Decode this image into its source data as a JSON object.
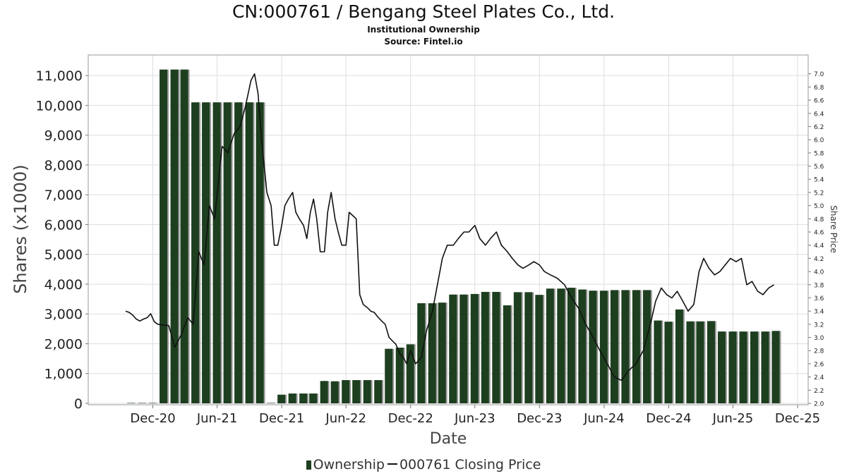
{
  "title": "CN:000761 / Bengang Steel Plates Co., Ltd.",
  "subtitle": "Institutional Ownership",
  "source": "Source: Fintel.io",
  "chart_data": {
    "type": "bar",
    "xlabel": "Date",
    "ylabel": "Shares (x1000)",
    "y2label": "Share Price",
    "x_ticks": [
      "Dec-20",
      "Jun-21",
      "Dec-21",
      "Jun-22",
      "Dec-22",
      "Jun-23",
      "Dec-23",
      "Jun-24",
      "Dec-24",
      "Jun-25",
      "Dec-25"
    ],
    "x_range": [
      "2020-06-01",
      "2025-12-31"
    ],
    "y_ticks": [
      "0",
      "1,000",
      "2,000",
      "3,000",
      "4,000",
      "5,000",
      "6,000",
      "7,000",
      "8,000",
      "9,000",
      "10,000",
      "11,000"
    ],
    "ylim": [
      0,
      11500
    ],
    "y2_ticks": [
      "2.0",
      "2.2",
      "2.4",
      "2.6",
      "2.8",
      "3.0",
      "3.2",
      "3.4",
      "3.6",
      "3.8",
      "4.0",
      "4.2",
      "4.4",
      "4.6",
      "4.8",
      "5.0",
      "5.2",
      "5.4",
      "5.6",
      "5.8",
      "6.0",
      "6.2",
      "6.4",
      "6.6",
      "6.8",
      "7.0"
    ],
    "y2lim": [
      2.0,
      7.2
    ],
    "grid": true,
    "legend_position": "bottom",
    "colors": {
      "bar": "#1d3f1f",
      "bar_shadow": "#8a8a8a",
      "line": "#111111",
      "grid": "#dddddd"
    },
    "series": [
      {
        "name": "Ownership",
        "kind": "bar",
        "x": [
          "2020-09-30",
          "2020-10-31",
          "2020-11-30",
          "2020-12-31",
          "2021-01-31",
          "2021-02-28",
          "2021-03-31",
          "2021-04-30",
          "2021-05-31",
          "2021-06-30",
          "2021-07-31",
          "2021-08-31",
          "2021-09-30",
          "2021-10-31",
          "2021-11-30",
          "2021-12-31",
          "2022-01-31",
          "2022-02-28",
          "2022-03-31",
          "2022-04-30",
          "2022-05-31",
          "2022-06-30",
          "2022-07-31",
          "2022-08-31",
          "2022-09-30",
          "2022-10-31",
          "2022-11-30",
          "2022-12-31",
          "2023-01-31",
          "2023-02-28",
          "2023-03-31",
          "2023-04-30",
          "2023-05-31",
          "2023-06-30",
          "2023-07-31",
          "2023-08-31",
          "2023-09-30",
          "2023-10-31",
          "2023-11-30",
          "2023-12-31",
          "2024-01-31",
          "2024-02-29",
          "2024-03-31",
          "2024-04-30",
          "2024-05-31",
          "2024-06-30",
          "2024-07-31",
          "2024-08-31",
          "2024-09-30",
          "2024-10-31",
          "2024-11-30",
          "2024-12-31",
          "2025-01-31",
          "2025-02-28",
          "2025-03-31",
          "2025-04-30",
          "2025-05-31",
          "2025-06-30",
          "2025-07-31",
          "2025-08-31",
          "2025-09-30"
        ],
        "values": [
          10,
          10,
          10,
          11200,
          11200,
          11200,
          10100,
          10100,
          10100,
          10100,
          10100,
          10100,
          10100,
          0,
          290,
          330,
          330,
          330,
          750,
          740,
          780,
          780,
          780,
          780,
          1830,
          1870,
          1980,
          3360,
          3360,
          3380,
          3650,
          3650,
          3670,
          3740,
          3740,
          3290,
          3730,
          3730,
          3640,
          3850,
          3850,
          3880,
          3820,
          3780,
          3780,
          3800,
          3800,
          3800,
          3800,
          2780,
          2740,
          3150,
          2750,
          2750,
          2760,
          2410,
          2410,
          2410,
          2410,
          2410,
          2430
        ]
      },
      {
        "name": "000761 Closing Price",
        "kind": "line",
        "x": [
          "2020-09-15",
          "2020-09-25",
          "2020-10-05",
          "2020-10-15",
          "2020-10-25",
          "2020-11-05",
          "2020-11-15",
          "2020-11-25",
          "2020-12-05",
          "2020-12-15",
          "2021-01-15",
          "2021-02-01",
          "2021-02-20",
          "2021-03-10",
          "2021-03-25",
          "2021-04-10",
          "2021-04-25",
          "2021-05-10",
          "2021-05-25",
          "2021-06-15",
          "2021-07-01",
          "2021-07-20",
          "2021-08-05",
          "2021-08-20",
          "2021-09-05",
          "2021-09-15",
          "2021-09-25",
          "2021-10-05",
          "2021-10-20",
          "2021-11-01",
          "2021-11-10",
          "2021-11-20",
          "2021-12-01",
          "2021-12-10",
          "2021-12-20",
          "2022-01-01",
          "2022-01-10",
          "2022-01-20",
          "2022-02-01",
          "2022-02-10",
          "2022-02-20",
          "2022-03-01",
          "2022-03-10",
          "2022-03-20",
          "2022-04-01",
          "2022-04-10",
          "2022-04-20",
          "2022-05-01",
          "2022-05-10",
          "2022-05-20",
          "2022-06-01",
          "2022-06-10",
          "2022-06-20",
          "2022-06-30",
          "2022-07-10",
          "2022-07-20",
          "2022-08-01",
          "2022-08-10",
          "2022-08-20",
          "2022-09-01",
          "2022-09-10",
          "2022-09-20",
          "2022-10-01",
          "2022-10-10",
          "2022-10-20",
          "2022-11-01",
          "2022-11-10",
          "2022-11-20",
          "2022-12-01",
          "2022-12-15",
          "2023-01-01",
          "2023-01-15",
          "2023-02-01",
          "2023-02-15",
          "2023-03-01",
          "2023-03-15",
          "2023-04-01",
          "2023-04-15",
          "2023-05-01",
          "2023-05-15",
          "2023-06-01",
          "2023-06-15",
          "2023-07-01",
          "2023-07-15",
          "2023-08-01",
          "2023-08-15",
          "2023-09-01",
          "2023-09-15",
          "2023-10-01",
          "2023-10-15",
          "2023-11-01",
          "2023-11-15",
          "2023-12-01",
          "2023-12-15",
          "2024-01-01",
          "2024-01-20",
          "2024-02-10",
          "2024-03-01",
          "2024-03-20",
          "2024-04-10",
          "2024-05-01",
          "2024-05-20",
          "2024-06-10",
          "2024-06-30",
          "2024-07-20",
          "2024-08-10",
          "2024-08-30",
          "2024-09-20",
          "2024-10-10",
          "2024-10-25",
          "2024-11-10",
          "2024-11-25",
          "2024-12-10",
          "2024-12-25",
          "2025-01-10",
          "2025-01-25",
          "2025-02-10",
          "2025-02-25",
          "2025-03-10",
          "2025-03-25",
          "2025-04-10",
          "2025-04-25",
          "2025-05-10",
          "2025-05-25",
          "2025-06-10",
          "2025-06-25",
          "2025-07-10",
          "2025-07-25",
          "2025-08-10",
          "2025-08-25",
          "2025-09-10",
          "2025-09-25"
        ],
        "values": [
          3.4,
          3.38,
          3.34,
          3.28,
          3.25,
          3.28,
          3.3,
          3.36,
          3.24,
          3.2,
          3.18,
          2.85,
          3.05,
          3.3,
          3.2,
          4.3,
          4.1,
          5.0,
          4.8,
          5.9,
          5.8,
          6.1,
          6.2,
          6.5,
          6.9,
          7.0,
          6.7,
          6.0,
          5.2,
          5.0,
          4.4,
          4.4,
          4.7,
          5.0,
          5.1,
          5.2,
          4.9,
          4.8,
          4.7,
          4.5,
          4.9,
          5.1,
          4.8,
          4.3,
          4.3,
          4.9,
          5.2,
          4.8,
          4.6,
          4.4,
          4.4,
          4.9,
          4.85,
          4.8,
          3.65,
          3.5,
          3.45,
          3.4,
          3.38,
          3.3,
          3.25,
          3.2,
          3.0,
          2.95,
          2.9,
          2.75,
          2.7,
          2.6,
          2.8,
          2.6,
          2.7,
          3.1,
          3.4,
          3.8,
          4.2,
          4.4,
          4.4,
          4.5,
          4.6,
          4.6,
          4.7,
          4.5,
          4.4,
          4.5,
          4.6,
          4.4,
          4.3,
          4.2,
          4.1,
          4.05,
          4.1,
          4.15,
          4.1,
          4.0,
          3.95,
          3.9,
          3.8,
          3.6,
          3.45,
          3.2,
          3.0,
          2.8,
          2.6,
          2.4,
          2.35,
          2.5,
          2.6,
          2.8,
          3.2,
          3.55,
          3.75,
          3.65,
          3.6,
          3.7,
          3.55,
          3.4,
          3.5,
          4.0,
          4.2,
          4.05,
          3.95,
          4.0,
          4.1,
          4.2,
          4.15,
          4.2,
          3.8,
          3.85,
          3.7,
          3.65,
          3.75,
          3.8
        ]
      }
    ]
  },
  "legend": {
    "bar_label": "Ownership",
    "line_label": "000761 Closing Price"
  }
}
